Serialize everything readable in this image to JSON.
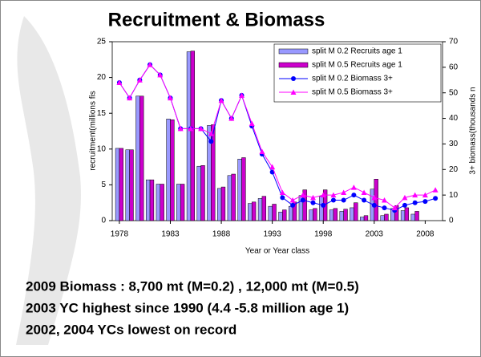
{
  "chart_data": {
    "type": "combo",
    "title": "Recruitment & Biomass",
    "x_label": "Year or Year class",
    "y_label": "recruitment(millions fis",
    "y2_label": "3+ biomass(thousands n",
    "x": [
      1978,
      1979,
      1980,
      1981,
      1982,
      1983,
      1984,
      1985,
      1986,
      1987,
      1988,
      1989,
      1990,
      1991,
      1992,
      1993,
      1994,
      1995,
      1996,
      1997,
      1998,
      1999,
      2000,
      2001,
      2002,
      2003,
      2004,
      2005,
      2006,
      2007,
      2008,
      2009
    ],
    "xlim": [
      1977.3,
      2009.7
    ],
    "xticks": [
      1978,
      1983,
      1988,
      1993,
      1998,
      2003,
      2008
    ],
    "ylim": [
      0,
      25
    ],
    "yticks": [
      0,
      5,
      10,
      15,
      20,
      25
    ],
    "y2lim": [
      0,
      70
    ],
    "y2ticks": [
      0,
      10,
      20,
      30,
      40,
      50,
      60,
      70
    ],
    "series": [
      {
        "name": "split M 0.2 Recruits age 1",
        "type": "bar",
        "color": "#9999ff",
        "values": [
          10.1,
          9.9,
          17.4,
          5.7,
          5.1,
          14.2,
          5.1,
          23.6,
          7.6,
          13.3,
          4.5,
          6.3,
          8.6,
          2.4,
          3.1,
          2.0,
          1.2,
          2.0,
          3.5,
          1.5,
          3.4,
          1.5,
          1.3,
          1.8,
          0.5,
          4.4,
          0.7,
          1.7,
          1.4,
          0.9,
          null,
          null
        ]
      },
      {
        "name": "split M 0.5 Recruits age 1",
        "type": "bar",
        "color": "#cc00cc",
        "values": [
          10.1,
          9.9,
          17.4,
          5.7,
          5.1,
          14.1,
          5.1,
          23.7,
          7.7,
          13.4,
          4.7,
          6.5,
          8.8,
          2.6,
          3.4,
          2.3,
          1.5,
          2.6,
          4.3,
          1.7,
          4.3,
          1.7,
          1.6,
          2.5,
          0.7,
          5.8,
          0.9,
          2.1,
          1.8,
          1.3,
          null,
          null
        ]
      },
      {
        "name": "split M 0.2 Biomass 3+",
        "type": "line",
        "marker": "circle",
        "axis": "y2",
        "color": "#0000ff",
        "values": [
          54,
          48,
          55,
          61,
          57,
          48,
          36,
          36,
          36,
          31,
          47,
          40,
          49,
          37,
          26,
          19,
          9,
          6,
          8,
          7,
          6,
          8,
          8,
          10,
          8,
          6,
          5,
          4,
          6,
          7,
          7.5,
          8.7
        ]
      },
      {
        "name": "split M 0.5 Biomass 3+",
        "type": "line",
        "marker": "triangle",
        "axis": "y2",
        "color": "#ff00ff",
        "values": [
          54,
          48,
          55,
          61,
          57,
          48,
          36,
          36,
          36,
          34,
          47,
          40,
          49,
          38,
          27,
          21,
          11,
          8,
          10,
          9,
          10,
          10,
          11,
          13,
          11,
          9,
          8,
          5,
          9,
          10,
          10,
          12
        ]
      }
    ]
  },
  "notes": [
    "2009 Biomass : 8,700 mt (M=0.2) , 12,000 mt (M=0.5)",
    "2003 YC highest since 1990  (4.4 -5.8 million age 1)",
    "2002, 2004 YCs lowest on record"
  ]
}
